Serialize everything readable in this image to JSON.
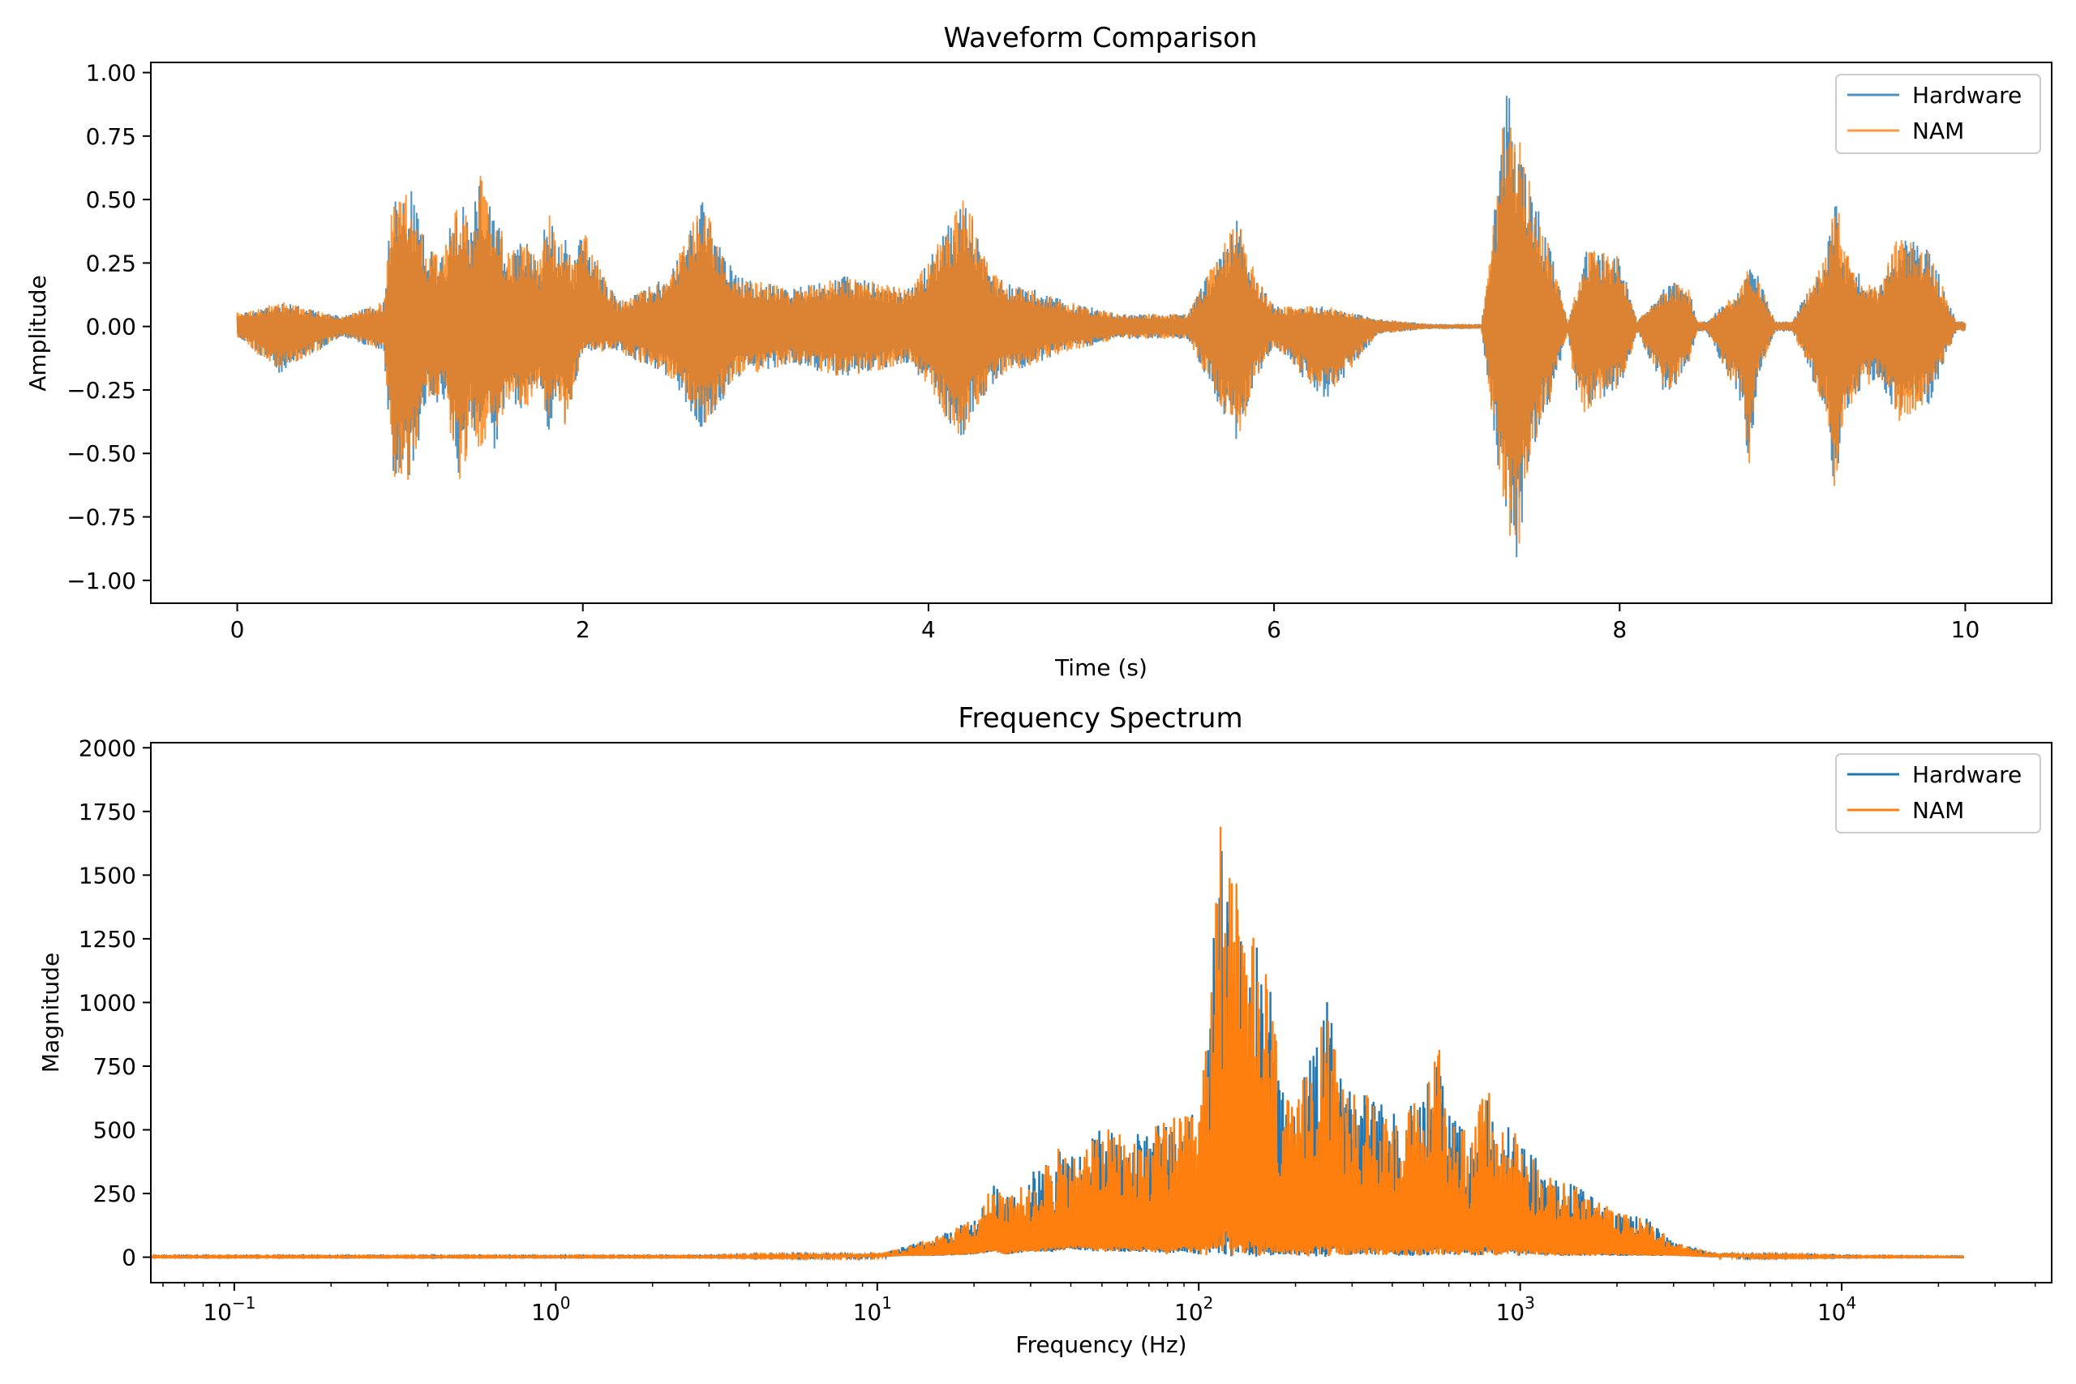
{
  "chart_data": [
    {
      "type": "line",
      "title": "Waveform Comparison",
      "xlabel": "Time (s)",
      "ylabel": "Amplitude",
      "xlim": [
        -0.5,
        10.5
      ],
      "ylim": [
        -1.09,
        1.04
      ],
      "xticks": [
        0,
        2,
        4,
        6,
        8,
        10
      ],
      "xtick_labels": [
        "0",
        "2",
        "4",
        "6",
        "8",
        "10"
      ],
      "yticks": [
        1.0,
        0.75,
        0.5,
        0.25,
        0.0,
        -0.25,
        -0.5,
        -0.75,
        -1.0
      ],
      "ytick_labels": [
        "1.00",
        "0.75",
        "0.50",
        "0.25",
        "0.00",
        "−0.25",
        "−0.50",
        "−0.75",
        "−1.00"
      ],
      "grid": false,
      "legend": "top-right",
      "series": [
        {
          "name": "Hardware",
          "color": "#1f77b4"
        },
        {
          "name": "NAM",
          "color": "#ff7f0e"
        }
      ],
      "envelope": {
        "t": [
          0.0,
          0.02,
          0.25,
          0.6,
          0.85,
          0.9,
          0.95,
          1.0,
          1.05,
          1.1,
          1.2,
          1.25,
          1.3,
          1.35,
          1.4,
          1.45,
          1.5,
          1.55,
          1.6,
          1.65,
          1.7,
          1.75,
          1.8,
          1.85,
          1.9,
          1.95,
          2.0,
          2.2,
          2.5,
          2.7,
          2.75,
          2.8,
          2.9,
          3.2,
          3.5,
          3.9,
          4.2,
          4.25,
          4.3,
          4.4,
          4.6,
          4.8,
          5.1,
          5.5,
          5.8,
          5.85,
          5.9,
          6.0,
          6.3,
          6.6,
          6.9,
          7.2,
          7.35,
          7.4,
          7.45,
          7.5,
          7.55,
          7.6,
          7.7,
          7.75,
          7.8,
          7.9,
          8.0,
          8.05,
          8.1,
          8.25,
          8.3,
          8.4,
          8.45,
          8.5,
          8.7,
          8.75,
          8.8,
          8.9,
          9.0,
          9.2,
          9.25,
          9.3,
          9.4,
          9.5,
          9.6,
          9.65,
          9.7,
          9.8,
          9.9,
          9.95,
          10.0
        ],
        "hi": [
          0.06,
          0.05,
          0.1,
          0.04,
          0.1,
          0.55,
          0.5,
          0.55,
          0.45,
          0.3,
          0.3,
          0.45,
          0.55,
          0.35,
          0.62,
          0.5,
          0.5,
          0.3,
          0.3,
          0.35,
          0.32,
          0.25,
          0.5,
          0.3,
          0.38,
          0.25,
          0.4,
          0.1,
          0.2,
          0.52,
          0.4,
          0.3,
          0.2,
          0.15,
          0.2,
          0.15,
          0.5,
          0.45,
          0.3,
          0.2,
          0.15,
          0.1,
          0.05,
          0.05,
          0.45,
          0.3,
          0.2,
          0.08,
          0.08,
          0.03,
          0.01,
          0.01,
          0.95,
          0.8,
          0.65,
          0.55,
          0.4,
          0.3,
          0.02,
          0.15,
          0.3,
          0.3,
          0.28,
          0.15,
          0.02,
          0.15,
          0.18,
          0.15,
          0.02,
          0.02,
          0.15,
          0.25,
          0.2,
          0.02,
          0.02,
          0.3,
          0.56,
          0.3,
          0.2,
          0.15,
          0.35,
          0.34,
          0.35,
          0.3,
          0.1,
          0.02,
          0.02
        ],
        "lo": [
          -0.05,
          -0.05,
          -0.19,
          -0.04,
          -0.1,
          -0.6,
          -0.58,
          -0.62,
          -0.45,
          -0.3,
          -0.3,
          -0.5,
          -0.65,
          -0.4,
          -0.55,
          -0.45,
          -0.5,
          -0.3,
          -0.3,
          -0.35,
          -0.3,
          -0.25,
          -0.42,
          -0.3,
          -0.4,
          -0.25,
          -0.1,
          -0.1,
          -0.2,
          -0.42,
          -0.35,
          -0.3,
          -0.2,
          -0.15,
          -0.2,
          -0.15,
          -0.47,
          -0.35,
          -0.3,
          -0.2,
          -0.15,
          -0.1,
          -0.05,
          -0.05,
          -0.48,
          -0.3,
          -0.2,
          -0.08,
          -0.3,
          -0.03,
          -0.01,
          -0.01,
          -0.85,
          -1.0,
          -0.7,
          -0.5,
          -0.35,
          -0.3,
          -0.02,
          -0.3,
          -0.35,
          -0.28,
          -0.25,
          -0.15,
          -0.02,
          -0.25,
          -0.26,
          -0.15,
          -0.02,
          -0.02,
          -0.3,
          -0.55,
          -0.2,
          -0.02,
          -0.02,
          -0.35,
          -0.7,
          -0.35,
          -0.25,
          -0.2,
          -0.35,
          -0.41,
          -0.35,
          -0.3,
          -0.1,
          -0.02,
          -0.02
        ]
      }
    },
    {
      "type": "line",
      "title": "Frequency Spectrum",
      "xlabel": "Frequency (Hz)",
      "ylabel": "Magnitude",
      "xscale": "log",
      "xlim": [
        0.055,
        45000
      ],
      "ylim": [
        -100,
        2020
      ],
      "xticks": [
        0.1,
        1,
        10,
        100,
        1000,
        10000
      ],
      "xtick_bases": [
        "10",
        "10",
        "10",
        "10",
        "10",
        "10"
      ],
      "xtick_exps": [
        "−1",
        "0",
        "1",
        "2",
        "3",
        "4"
      ],
      "yticks": [
        0,
        250,
        500,
        750,
        1000,
        1250,
        1500,
        1750,
        2000
      ],
      "ytick_labels": [
        "0",
        "250",
        "500",
        "750",
        "1000",
        "1250",
        "1500",
        "1750",
        "2000"
      ],
      "grid": false,
      "legend": "top-right",
      "series": [
        {
          "name": "Hardware",
          "color": "#1f77b4"
        },
        {
          "name": "NAM",
          "color": "#ff7f0e"
        }
      ],
      "envelope": {
        "f": [
          0.055,
          3,
          10,
          12,
          15,
          20,
          23,
          25,
          30,
          35,
          40,
          50,
          60,
          70,
          80,
          90,
          100,
          110,
          115,
          120,
          125,
          130,
          140,
          150,
          160,
          170,
          180,
          200,
          250,
          270,
          300,
          350,
          400,
          500,
          560,
          600,
          700,
          800,
          850,
          900,
          1000,
          1200,
          1500,
          2000,
          2500,
          3000,
          4000,
          6000,
          10000,
          24000
        ],
        "hi": [
          5,
          5,
          15,
          40,
          80,
          150,
          300,
          230,
          320,
          440,
          400,
          510,
          480,
          500,
          560,
          550,
          600,
          1080,
          1900,
          1880,
          1930,
          1510,
          1250,
          1260,
          1200,
          1030,
          700,
          560,
          1150,
          720,
          650,
          640,
          560,
          640,
          860,
          560,
          520,
          680,
          500,
          520,
          520,
          320,
          280,
          180,
          150,
          60,
          20,
          10,
          5,
          3
        ],
        "lo": [
          0,
          0,
          0,
          5,
          5,
          10,
          20,
          10,
          20,
          20,
          30,
          20,
          20,
          20,
          10,
          20,
          10,
          5,
          0,
          10,
          0,
          5,
          10,
          0,
          10,
          5,
          10,
          5,
          0,
          10,
          5,
          10,
          5,
          5,
          5,
          10,
          5,
          10,
          5,
          10,
          5,
          5,
          5,
          5,
          5,
          5,
          0,
          0,
          0,
          0
        ]
      }
    }
  ]
}
